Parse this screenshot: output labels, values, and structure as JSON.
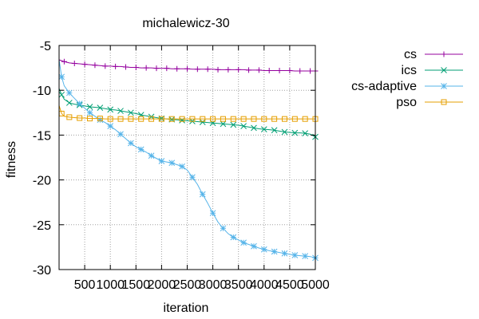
{
  "chart_data": {
    "type": "line",
    "title": "michalewicz-30",
    "xlabel": "iteration",
    "ylabel": "fitness",
    "xlim": [
      0,
      5000
    ],
    "ylim": [
      -30,
      -5
    ],
    "xticks": [
      500,
      1000,
      1500,
      2000,
      2500,
      3000,
      3500,
      4000,
      4500,
      5000
    ],
    "yticks": [
      -5,
      -10,
      -15,
      -20,
      -25,
      -30
    ],
    "grid": true,
    "legend_position": "top-right",
    "series": [
      {
        "name": "cs",
        "color": "#94009e",
        "marker": "plus",
        "x": [
          0,
          100,
          200,
          300,
          400,
          500,
          600,
          700,
          800,
          900,
          1000,
          1100,
          1200,
          1300,
          1400,
          1500,
          1600,
          1700,
          1800,
          1900,
          2000,
          2100,
          2200,
          2300,
          2400,
          2500,
          2600,
          2700,
          2800,
          2900,
          3000,
          3100,
          3200,
          3300,
          3400,
          3500,
          3600,
          3700,
          3800,
          3900,
          4000,
          4100,
          4200,
          4300,
          4400,
          4500,
          4600,
          4700,
          4800,
          4900,
          5000
        ],
        "y": [
          -6.6,
          -6.8,
          -6.95,
          -7.0,
          -7.05,
          -7.1,
          -7.15,
          -7.2,
          -7.25,
          -7.3,
          -7.3,
          -7.35,
          -7.35,
          -7.4,
          -7.45,
          -7.45,
          -7.5,
          -7.5,
          -7.5,
          -7.55,
          -7.55,
          -7.55,
          -7.6,
          -7.6,
          -7.6,
          -7.6,
          -7.65,
          -7.65,
          -7.65,
          -7.65,
          -7.65,
          -7.7,
          -7.7,
          -7.7,
          -7.7,
          -7.7,
          -7.7,
          -7.75,
          -7.75,
          -7.75,
          -7.8,
          -7.8,
          -7.8,
          -7.8,
          -7.8,
          -7.8,
          -7.85,
          -7.85,
          -7.85,
          -7.85,
          -7.85
        ]
      },
      {
        "name": "ics",
        "color": "#009e73",
        "marker": "cross",
        "x": [
          0,
          50,
          100,
          200,
          300,
          400,
          500,
          600,
          700,
          800,
          900,
          1000,
          1100,
          1200,
          1300,
          1400,
          1500,
          1600,
          1700,
          1800,
          1900,
          2000,
          2100,
          2200,
          2300,
          2400,
          2500,
          2600,
          2700,
          2800,
          2900,
          3000,
          3100,
          3200,
          3300,
          3400,
          3500,
          3600,
          3700,
          3800,
          3900,
          4000,
          4100,
          4200,
          4300,
          4400,
          4500,
          4600,
          4700,
          4800,
          4900,
          5000
        ],
        "y": [
          -9.8,
          -10.5,
          -11.0,
          -11.4,
          -11.55,
          -11.65,
          -11.75,
          -11.85,
          -11.9,
          -11.95,
          -12.05,
          -12.15,
          -12.2,
          -12.3,
          -12.4,
          -12.5,
          -12.6,
          -12.75,
          -12.85,
          -12.95,
          -13.05,
          -13.15,
          -13.2,
          -13.25,
          -13.3,
          -13.35,
          -13.4,
          -13.45,
          -13.5,
          -13.55,
          -13.6,
          -13.65,
          -13.7,
          -13.75,
          -13.8,
          -13.85,
          -13.9,
          -14.0,
          -14.1,
          -14.2,
          -14.3,
          -14.35,
          -14.4,
          -14.45,
          -14.55,
          -14.65,
          -14.7,
          -14.75,
          -14.75,
          -14.8,
          -14.9,
          -15.2
        ]
      },
      {
        "name": "cs-adaptive",
        "color": "#56b4e9",
        "marker": "star",
        "x": [
          0,
          50,
          100,
          200,
          300,
          400,
          500,
          600,
          700,
          800,
          900,
          1000,
          1100,
          1200,
          1300,
          1400,
          1500,
          1600,
          1700,
          1800,
          1900,
          2000,
          2100,
          2200,
          2300,
          2400,
          2500,
          2600,
          2700,
          2800,
          2900,
          3000,
          3100,
          3200,
          3300,
          3400,
          3500,
          3600,
          3700,
          3800,
          3900,
          4000,
          4100,
          4200,
          4300,
          4400,
          4500,
          4600,
          4700,
          4800,
          4900,
          5000
        ],
        "y": [
          -6.6,
          -8.5,
          -9.5,
          -10.3,
          -10.9,
          -11.5,
          -12.0,
          -12.5,
          -12.9,
          -13.3,
          -13.6,
          -14.0,
          -14.4,
          -14.9,
          -15.4,
          -15.9,
          -16.3,
          -16.6,
          -16.9,
          -17.3,
          -17.6,
          -17.9,
          -18.0,
          -18.1,
          -18.3,
          -18.5,
          -18.9,
          -19.7,
          -20.5,
          -21.6,
          -22.6,
          -23.7,
          -24.7,
          -25.4,
          -26.0,
          -26.4,
          -26.7,
          -27.0,
          -27.2,
          -27.4,
          -27.6,
          -27.75,
          -27.9,
          -28.0,
          -28.1,
          -28.2,
          -28.3,
          -28.4,
          -28.45,
          -28.5,
          -28.55,
          -28.7
        ]
      },
      {
        "name": "pso",
        "color": "#e69f00",
        "marker": "square",
        "x": [
          0,
          50,
          100,
          200,
          300,
          400,
          500,
          600,
          700,
          800,
          900,
          1000,
          1100,
          1200,
          1300,
          1400,
          1500,
          1600,
          1700,
          1800,
          1900,
          2000,
          2100,
          2200,
          2300,
          2400,
          2500,
          2600,
          2700,
          2800,
          2900,
          3000,
          3100,
          3200,
          3300,
          3400,
          3500,
          3600,
          3700,
          3800,
          3900,
          4000,
          4100,
          4200,
          4300,
          4400,
          4500,
          4600,
          4700,
          4800,
          4900,
          5000
        ],
        "y": [
          -11.7,
          -12.6,
          -12.9,
          -13.0,
          -13.05,
          -13.1,
          -13.1,
          -13.15,
          -13.15,
          -13.15,
          -13.2,
          -13.2,
          -13.2,
          -13.2,
          -13.2,
          -13.2,
          -13.2,
          -13.2,
          -13.2,
          -13.2,
          -13.2,
          -13.2,
          -13.2,
          -13.2,
          -13.2,
          -13.2,
          -13.2,
          -13.2,
          -13.2,
          -13.2,
          -13.2,
          -13.2,
          -13.2,
          -13.2,
          -13.2,
          -13.2,
          -13.2,
          -13.2,
          -13.2,
          -13.2,
          -13.2,
          -13.2,
          -13.2,
          -13.2,
          -13.2,
          -13.2,
          -13.2,
          -13.2,
          -13.2,
          -13.2,
          -13.2,
          -13.2
        ]
      }
    ]
  }
}
